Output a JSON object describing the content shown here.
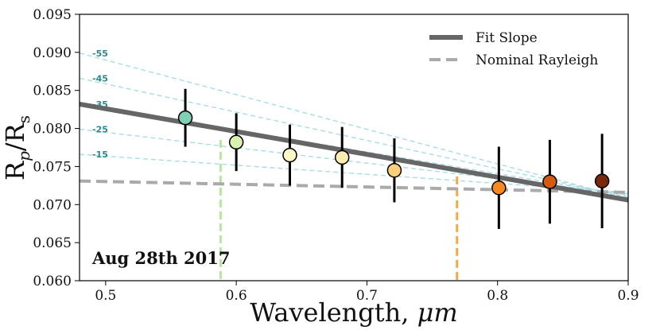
{
  "chart_data": {
    "type": "scatter",
    "xlabel_main": "Wavelength, ",
    "xlabel_unit": "μm",
    "ylabel": {
      "r1": "R",
      "sub1": "p",
      "slash": "/R",
      "sub2": "s"
    },
    "xlim": [
      0.48,
      0.9
    ],
    "ylim": [
      0.06,
      0.095
    ],
    "x_ticks": [
      {
        "value": 0.5,
        "label": "0.5"
      },
      {
        "value": 0.6,
        "label": "0.6"
      },
      {
        "value": 0.7,
        "label": "0.7"
      },
      {
        "value": 0.8,
        "label": "0.8"
      },
      {
        "value": 0.9,
        "label": "0.9"
      }
    ],
    "y_ticks": [
      {
        "value": 0.06,
        "label": "0.060"
      },
      {
        "value": 0.065,
        "label": "0.065"
      },
      {
        "value": 0.07,
        "label": "0.070"
      },
      {
        "value": 0.075,
        "label": "0.075"
      },
      {
        "value": 0.08,
        "label": "0.080"
      },
      {
        "value": 0.085,
        "label": "0.085"
      },
      {
        "value": 0.09,
        "label": "0.090"
      },
      {
        "value": 0.095,
        "label": "0.095"
      }
    ],
    "points": [
      {
        "x": 0.561,
        "y": 0.0814,
        "err": 0.0038,
        "color": "#7ecfb5"
      },
      {
        "x": 0.6,
        "y": 0.0782,
        "err": 0.0038,
        "color": "#d8f0b0"
      },
      {
        "x": 0.641,
        "y": 0.0765,
        "err": 0.004,
        "color": "#fbf7c6"
      },
      {
        "x": 0.681,
        "y": 0.0762,
        "err": 0.004,
        "color": "#fdedb0"
      },
      {
        "x": 0.721,
        "y": 0.0745,
        "err": 0.0042,
        "color": "#fbd07a"
      },
      {
        "x": 0.801,
        "y": 0.0722,
        "err": 0.0054,
        "color": "#f48a20"
      },
      {
        "x": 0.84,
        "y": 0.073,
        "err": 0.0055,
        "color": "#d45a10"
      },
      {
        "x": 0.88,
        "y": 0.0731,
        "err": 0.0062,
        "color": "#7a2a0a"
      }
    ],
    "fit_line": {
      "name": "Fit Slope",
      "x": [
        0.48,
        0.9
      ],
      "y": [
        0.0832,
        0.0706
      ],
      "color": "#666666"
    },
    "nominal_line": {
      "name": "Nominal Rayleigh",
      "x": [
        0.48,
        0.9
      ],
      "y": [
        0.0731,
        0.0716
      ],
      "color": "#aaaaaa"
    },
    "slope_lines": [
      {
        "label": "-55",
        "x": [
          0.48,
          0.9
        ],
        "y": [
          0.0899,
          0.0708
        ]
      },
      {
        "label": "-45",
        "x": [
          0.48,
          0.9
        ],
        "y": [
          0.0866,
          0.071
        ]
      },
      {
        "label": "-35",
        "x": [
          0.48,
          0.9
        ],
        "y": [
          0.0832,
          0.0712
        ]
      },
      {
        "label": "-25",
        "x": [
          0.48,
          0.9
        ],
        "y": [
          0.0799,
          0.0714
        ]
      },
      {
        "label": "-15",
        "x": [
          0.48,
          0.9
        ],
        "y": [
          0.0766,
          0.0716
        ]
      }
    ],
    "vlines": [
      {
        "x": 0.588,
        "color": "#b8e6a0"
      },
      {
        "x": 0.769,
        "color": "#f5a742"
      }
    ],
    "slope_line_color": "#a8dce6",
    "slope_label_color": "#2a8a8a",
    "annotation": "Aug 28th 2017",
    "legend": [
      {
        "label": "Fit Slope",
        "style": "solid",
        "color": "#666666"
      },
      {
        "label": "Nominal Rayleigh",
        "style": "dashed",
        "color": "#aaaaaa"
      }
    ]
  }
}
